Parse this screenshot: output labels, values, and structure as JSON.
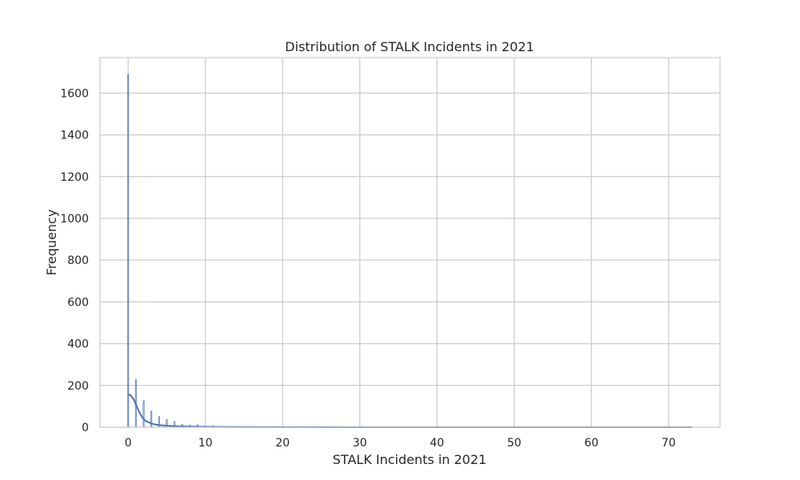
{
  "chart_data": {
    "type": "histogram",
    "title": "Distribution of STALK Incidents in 2021",
    "xlabel": "STALK Incidents in 2021",
    "ylabel": "Frequency",
    "xlim": [
      -3.65,
      76.65
    ],
    "ylim": [
      0,
      1770
    ],
    "x_ticks": [
      0,
      10,
      20,
      30,
      40,
      50,
      60,
      70
    ],
    "y_ticks": [
      0,
      200,
      400,
      600,
      800,
      1000,
      1200,
      1400,
      1600
    ],
    "grid": true,
    "bar_width": 0.16,
    "bins": [
      {
        "x": 0,
        "count": 1690
      },
      {
        "x": 1,
        "count": 228
      },
      {
        "x": 2,
        "count": 128
      },
      {
        "x": 3,
        "count": 78
      },
      {
        "x": 4,
        "count": 52
      },
      {
        "x": 5,
        "count": 38
      },
      {
        "x": 6,
        "count": 28
      },
      {
        "x": 7,
        "count": 14
      },
      {
        "x": 8,
        "count": 10
      },
      {
        "x": 9,
        "count": 12
      },
      {
        "x": 10,
        "count": 6
      },
      {
        "x": 11,
        "count": 6
      },
      {
        "x": 12,
        "count": 4
      },
      {
        "x": 13,
        "count": 3
      },
      {
        "x": 14,
        "count": 3
      },
      {
        "x": 15,
        "count": 2
      },
      {
        "x": 16,
        "count": 2
      },
      {
        "x": 17,
        "count": 2
      },
      {
        "x": 18,
        "count": 1
      },
      {
        "x": 20,
        "count": 1
      },
      {
        "x": 22,
        "count": 1
      },
      {
        "x": 25,
        "count": 1
      },
      {
        "x": 30,
        "count": 1
      },
      {
        "x": 35,
        "count": 1
      },
      {
        "x": 73,
        "count": 1
      }
    ],
    "kde": {
      "x": [
        0,
        0.3,
        0.6,
        0.9,
        1.2,
        1.5,
        1.8,
        2.2,
        2.6,
        3,
        3.5,
        4,
        5,
        6,
        8,
        10,
        12,
        15,
        20,
        30,
        40,
        50,
        60,
        73
      ],
      "y": [
        158,
        153,
        140,
        118,
        92,
        68,
        48,
        32,
        24,
        18,
        13,
        10,
        7,
        5,
        3,
        2,
        1.5,
        1,
        0.5,
        0.2,
        0.1,
        0.1,
        0.1,
        0.1
      ]
    },
    "colors": {
      "bar": "#4c72b0",
      "kde": "#4c72b0",
      "grid": "#cccccc",
      "frame": "#cccccc"
    }
  }
}
